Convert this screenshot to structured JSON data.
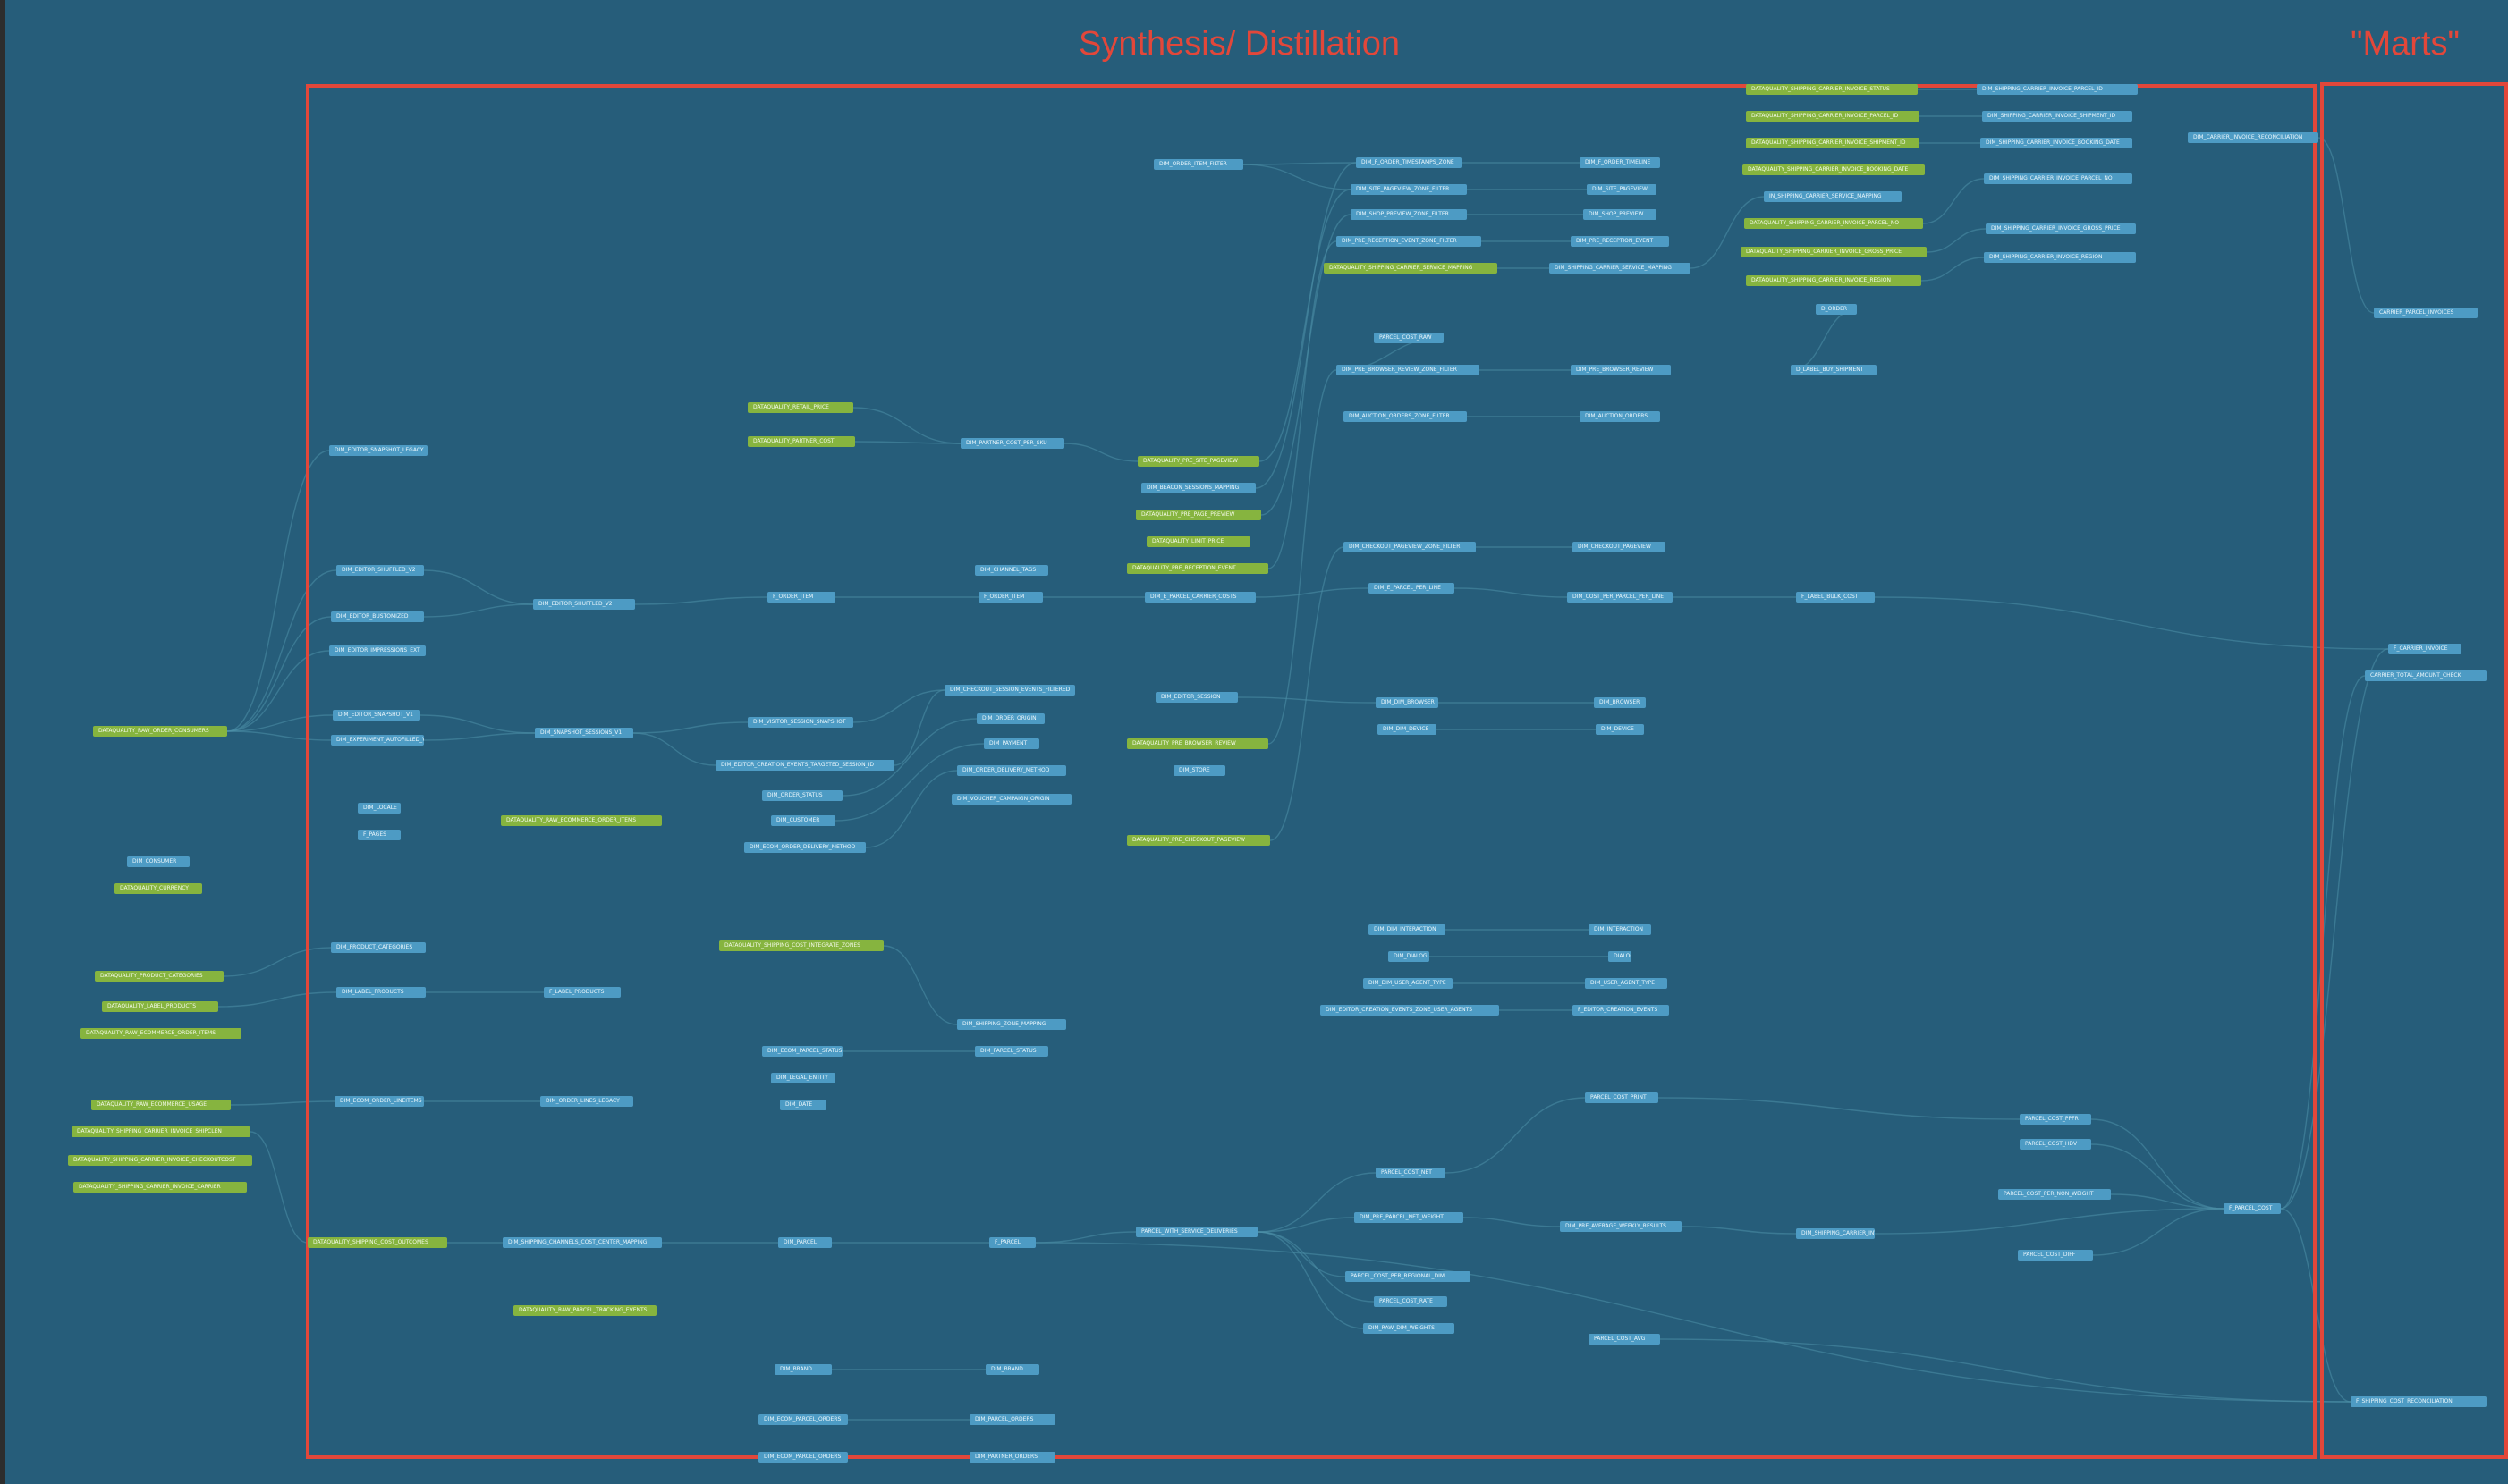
{
  "regions": [
    {
      "id": "synthesis",
      "title": "Synthesis/ Distillation"
    },
    {
      "id": "marts",
      "title": "\"Marts\""
    }
  ],
  "node_types": {
    "model_color": "#4d9bc4",
    "test_color": "#86b43f",
    "edge_color": "#4d8fa8",
    "region_border": "#e2473a",
    "background": "#265d7a"
  },
  "nodes": [
    {
      "id": "n1",
      "label": "DATAQUALITY_RAW_ORDER_CONSUMERS",
      "type": "test"
    },
    {
      "id": "n2",
      "label": "DIM_CONSUMER",
      "type": "model"
    },
    {
      "id": "n3",
      "label": "DATAQUALITY_CURRENCY",
      "type": "test"
    },
    {
      "id": "n4",
      "label": "DATAQUALITY_PRODUCT_CATEGORIES",
      "type": "test"
    },
    {
      "id": "n5",
      "label": "DATAQUALITY_LABEL_PRODUCTS",
      "type": "test"
    },
    {
      "id": "n6",
      "label": "DATAQUALITY_RAW_ECOMMERCE_ORDER_ITEMS",
      "type": "test"
    },
    {
      "id": "n7",
      "label": "DATAQUALITY_RAW_ECOMMERCE_USAGE",
      "type": "test"
    },
    {
      "id": "n8",
      "label": "DATAQUALITY_SHIPPING_CARRIER_INVOICE_SHIPCLEN",
      "type": "test"
    },
    {
      "id": "n9",
      "label": "DATAQUALITY_SHIPPING_CARRIER_INVOICE_CHECKOUTCOST",
      "type": "test"
    },
    {
      "id": "n10",
      "label": "DATAQUALITY_SHIPPING_CARRIER_INVOICE_CARRIER",
      "type": "test"
    },
    {
      "id": "n11",
      "label": "DIM_EDITOR_SNAPSHOT_LEGACY",
      "type": "model"
    },
    {
      "id": "n12",
      "label": "DIM_EDITOR_SHUFFLED_V2",
      "type": "model"
    },
    {
      "id": "n13",
      "label": "DIM_EDITOR_BUSTOMIZED",
      "type": "model"
    },
    {
      "id": "n14",
      "label": "DIM_EDITOR_IMPRESSIONS_EXT",
      "type": "model"
    },
    {
      "id": "n15",
      "label": "DIM_EDITOR_SNAPSHOT_V1",
      "type": "model"
    },
    {
      "id": "n16",
      "label": "DIM_EXPERIMENT_AUTOFILLED_V1",
      "type": "model"
    },
    {
      "id": "n17",
      "label": "DIM_LOCALE",
      "type": "model"
    },
    {
      "id": "n18",
      "label": "F_PAGES",
      "type": "model"
    },
    {
      "id": "n19",
      "label": "DIM_PRODUCT_CATEGORIES",
      "type": "model"
    },
    {
      "id": "n20",
      "label": "DIM_LABEL_PRODUCTS",
      "type": "model"
    },
    {
      "id": "n21",
      "label": "DIM_ECOM_ORDER_LINEITEMS",
      "type": "model"
    },
    {
      "id": "n22",
      "label": "DATAQUALITY_SHIPPING_COST_OUTCOMES",
      "type": "test"
    },
    {
      "id": "n23",
      "label": "DIM_EDITOR_SHUFFLED_V2",
      "type": "model"
    },
    {
      "id": "n24",
      "label": "DIM_SNAPSHOT_SESSIONS_V1",
      "type": "model"
    },
    {
      "id": "n25",
      "label": "DATAQUALITY_RAW_ECOMMERCE_ORDER_ITEMS",
      "type": "test"
    },
    {
      "id": "n26",
      "label": "F_LABEL_PRODUCTS",
      "type": "model"
    },
    {
      "id": "n27",
      "label": "DIM_ORDER_LINES_LEGACY",
      "type": "model"
    },
    {
      "id": "n28",
      "label": "DIM_SHIPPING_CHANNELS_COST_CENTER_MAPPING",
      "type": "model"
    },
    {
      "id": "n29",
      "label": "DATAQUALITY_RAW_PARCEL_TRACKING_EVENTS",
      "type": "test"
    },
    {
      "id": "n30",
      "label": "DATAQUALITY_RETAIL_PRICE",
      "type": "test"
    },
    {
      "id": "n31",
      "label": "DATAQUALITY_PARTNER_COST",
      "type": "test"
    },
    {
      "id": "n32",
      "label": "F_ORDER_ITEM",
      "type": "model"
    },
    {
      "id": "n33",
      "label": "DIM_VISITOR_SESSION_SNAPSHOT",
      "type": "model"
    },
    {
      "id": "n34",
      "label": "DIM_EDITOR_CREATION_EVENTS_TARGETED_SESSION_ID",
      "type": "model"
    },
    {
      "id": "n35",
      "label": "DIM_ORDER_STATUS",
      "type": "model"
    },
    {
      "id": "n36",
      "label": "DIM_CUSTOMER",
      "type": "model"
    },
    {
      "id": "n37",
      "label": "DIM_ECOM_ORDER_DELIVERY_METHOD",
      "type": "model"
    },
    {
      "id": "n38",
      "label": "DATAQUALITY_SHIPPING_COST_INTEGRATE_ZONES",
      "type": "test"
    },
    {
      "id": "n39",
      "label": "DIM_ECOM_PARCEL_STATUS",
      "type": "model"
    },
    {
      "id": "n40",
      "label": "DIM_LEGAL_ENTITY",
      "type": "model"
    },
    {
      "id": "n41",
      "label": "DIM_DATE",
      "type": "model"
    },
    {
      "id": "n42",
      "label": "DIM_PARCEL",
      "type": "model"
    },
    {
      "id": "n43",
      "label": "DIM_BRAND",
      "type": "model"
    },
    {
      "id": "n44",
      "label": "DIM_ECOM_PARCEL_ORDERS",
      "type": "model"
    },
    {
      "id": "n45",
      "label": "DIM_ECOM_PARCEL_ORDERS",
      "type": "model"
    },
    {
      "id": "n46",
      "label": "DIM_PARTNER_COST_PER_SKU",
      "type": "model"
    },
    {
      "id": "n47",
      "label": "DIM_CHANNEL_TAGS",
      "type": "model"
    },
    {
      "id": "n48",
      "label": "F_ORDER_ITEM",
      "type": "model"
    },
    {
      "id": "n49",
      "label": "DIM_CHECKOUT_SESSION_EVENTS_FILTERED",
      "type": "model"
    },
    {
      "id": "n50",
      "label": "DIM_ORDER_ORIGIN",
      "type": "model"
    },
    {
      "id": "n51",
      "label": "DIM_PAYMENT",
      "type": "model"
    },
    {
      "id": "n52",
      "label": "DIM_ORDER_DELIVERY_METHOD",
      "type": "model"
    },
    {
      "id": "n53",
      "label": "DIM_VOUCHER_CAMPAIGN_ORIGIN",
      "type": "model"
    },
    {
      "id": "n54",
      "label": "DIM_SHIPPING_ZONE_MAPPING",
      "type": "model"
    },
    {
      "id": "n55",
      "label": "DIM_PARCEL_STATUS",
      "type": "model"
    },
    {
      "id": "n56",
      "label": "F_PARCEL",
      "type": "model"
    },
    {
      "id": "n57",
      "label": "DIM_BRAND",
      "type": "model"
    },
    {
      "id": "n58",
      "label": "DIM_PARCEL_ORDERS",
      "type": "model"
    },
    {
      "id": "n59",
      "label": "DIM_PARTNER_ORDERS",
      "type": "model"
    },
    {
      "id": "n60",
      "label": "DIM_ORDER_ITEM_FILTER",
      "type": "model"
    },
    {
      "id": "n61",
      "label": "DATAQUALITY_PRE_SITE_PAGEVIEW",
      "type": "test"
    },
    {
      "id": "n62",
      "label": "DIM_BEACON_SESSIONS_MAPPING",
      "type": "model"
    },
    {
      "id": "n63",
      "label": "DATAQUALITY_PRE_PAGE_PREVIEW",
      "type": "test"
    },
    {
      "id": "n64",
      "label": "DATAQUALITY_LIMIT_PRICE",
      "type": "test"
    },
    {
      "id": "n65",
      "label": "DATAQUALITY_PRE_RECEPTION_EVENT",
      "type": "test"
    },
    {
      "id": "n66",
      "label": "DIM_E_PARCEL_CARRIER_COSTS",
      "type": "model"
    },
    {
      "id": "n67",
      "label": "DIM_EDITOR_SESSION",
      "type": "model"
    },
    {
      "id": "n68",
      "label": "DATAQUALITY_PRE_BROWSER_REVIEW",
      "type": "test"
    },
    {
      "id": "n69",
      "label": "DIM_STORE",
      "type": "model"
    },
    {
      "id": "n70",
      "label": "DATAQUALITY_PRE_CHECKOUT_PAGEVIEW",
      "type": "test"
    },
    {
      "id": "n71",
      "label": "PARCEL_WITH_SERVICE_DELIVERIES",
      "type": "model"
    },
    {
      "id": "n72",
      "label": "DIM_F_ORDER_TIMESTAMPS_ZONE",
      "type": "model"
    },
    {
      "id": "n73",
      "label": "DIM_SITE_PAGEVIEW_ZONE_FILTER",
      "type": "model"
    },
    {
      "id": "n74",
      "label": "DIM_SHOP_PREVIEW_ZONE_FILTER",
      "type": "model"
    },
    {
      "id": "n75",
      "label": "DIM_PRE_RECEPTION_EVENT_ZONE_FILTER",
      "type": "model"
    },
    {
      "id": "n76",
      "label": "DATAQUALITY_SHIPPING_CARRIER_SERVICE_MAPPING",
      "type": "test"
    },
    {
      "id": "n77",
      "label": "PARCEL_COST_RAW",
      "type": "model"
    },
    {
      "id": "n78",
      "label": "DIM_PRE_BROWSER_REVIEW_ZONE_FILTER",
      "type": "model"
    },
    {
      "id": "n79",
      "label": "DIM_AUCTION_ORDERS_ZONE_FILTER",
      "type": "model"
    },
    {
      "id": "n80",
      "label": "DIM_CHECKOUT_PAGEVIEW_ZONE_FILTER",
      "type": "model"
    },
    {
      "id": "n81",
      "label": "DIM_E_PARCEL_PER_LINE",
      "type": "model"
    },
    {
      "id": "n82",
      "label": "DIM_DIM_BROWSER",
      "type": "model"
    },
    {
      "id": "n83",
      "label": "DIM_DIM_DEVICE",
      "type": "model"
    },
    {
      "id": "n84",
      "label": "DIM_DIM_INTERACTION",
      "type": "model"
    },
    {
      "id": "n85",
      "label": "DIM_DIALOG",
      "type": "model"
    },
    {
      "id": "n86",
      "label": "DIM_DIM_USER_AGENT_TYPE",
      "type": "model"
    },
    {
      "id": "n87",
      "label": "DIM_EDITOR_CREATION_EVENTS_ZONE_USER_AGENTS",
      "type": "model"
    },
    {
      "id": "n88",
      "label": "PARCEL_COST_NET",
      "type": "model"
    },
    {
      "id": "n89",
      "label": "DIM_PRE_PARCEL_NET_WEIGHT",
      "type": "model"
    },
    {
      "id": "n90",
      "label": "PARCEL_COST_PER_REGIONAL_DIM",
      "type": "model"
    },
    {
      "id": "n91",
      "label": "PARCEL_COST_RATE",
      "type": "model"
    },
    {
      "id": "n92",
      "label": "DIM_RAW_DIM_WEIGHTS",
      "type": "model"
    },
    {
      "id": "n93",
      "label": "DIM_F_ORDER_TIMELINE",
      "type": "model"
    },
    {
      "id": "n94",
      "label": "DIM_SITE_PAGEVIEW",
      "type": "model"
    },
    {
      "id": "n95",
      "label": "DIM_SHOP_PREVIEW",
      "type": "model"
    },
    {
      "id": "n96",
      "label": "DIM_PRE_RECEPTION_EVENT",
      "type": "model"
    },
    {
      "id": "n97",
      "label": "DIM_SHIPPING_CARRIER_SERVICE_MAPPING",
      "type": "model"
    },
    {
      "id": "n98",
      "label": "DIM_PRE_BROWSER_REVIEW",
      "type": "model"
    },
    {
      "id": "n99",
      "label": "DIM_AUCTION_ORDERS",
      "type": "model"
    },
    {
      "id": "n100",
      "label": "DIM_CHECKOUT_PAGEVIEW",
      "type": "model"
    },
    {
      "id": "n101",
      "label": "DIM_COST_PER_PARCEL_PER_LINE",
      "type": "model"
    },
    {
      "id": "n102",
      "label": "DIM_BROWSER",
      "type": "model"
    },
    {
      "id": "n103",
      "label": "DIM_DEVICE",
      "type": "model"
    },
    {
      "id": "n104",
      "label": "DIM_INTERACTION",
      "type": "model"
    },
    {
      "id": "n105",
      "label": "DIALOG",
      "type": "model"
    },
    {
      "id": "n106",
      "label": "DIM_USER_AGENT_TYPE",
      "type": "model"
    },
    {
      "id": "n107",
      "label": "F_EDITOR_CREATION_EVENTS",
      "type": "model"
    },
    {
      "id": "n108",
      "label": "PARCEL_COST_PRINT",
      "type": "model"
    },
    {
      "id": "n109",
      "label": "DIM_PRE_AVERAGE_WEEKLY_RESULTS",
      "type": "model"
    },
    {
      "id": "n110",
      "label": "PARCEL_COST_AVG",
      "type": "model"
    },
    {
      "id": "n111",
      "label": "DATAQUALITY_SHIPPING_CARRIER_INVOICE_STATUS",
      "type": "test"
    },
    {
      "id": "n112",
      "label": "DATAQUALITY_SHIPPING_CARRIER_INVOICE_PARCEL_ID",
      "type": "test"
    },
    {
      "id": "n113",
      "label": "DATAQUALITY_SHIPPING_CARRIER_INVOICE_SHIPMENT_ID",
      "type": "test"
    },
    {
      "id": "n114",
      "label": "DATAQUALITY_SHIPPING_CARRIER_INVOICE_BOOKING_DATE",
      "type": "test"
    },
    {
      "id": "n115",
      "label": "IN_SHIPPING_CARRIER_SERVICE_MAPPING",
      "type": "model"
    },
    {
      "id": "n116",
      "label": "DATAQUALITY_SHIPPING_CARRIER_INVOICE_PARCEL_NO",
      "type": "test"
    },
    {
      "id": "n117",
      "label": "DATAQUALITY_SHIPPING_CARRIER_INVOICE_GROSS_PRICE",
      "type": "test"
    },
    {
      "id": "n118",
      "label": "DATAQUALITY_SHIPPING_CARRIER_INVOICE_REGION",
      "type": "test"
    },
    {
      "id": "n119",
      "label": "D_ORDER",
      "type": "model"
    },
    {
      "id": "n120",
      "label": "D_LABEL_BUY_SHIPMENT",
      "type": "model"
    },
    {
      "id": "n121",
      "label": "F_LABEL_BULK_COST",
      "type": "model"
    },
    {
      "id": "n122",
      "label": "DIM_SHIPPING_CARRIER_INVOICE_CONSOLIDATED",
      "type": "model"
    },
    {
      "id": "n123",
      "label": "DIM_SHIPPING_CARRIER_INVOICE_PARCEL_ID",
      "type": "model"
    },
    {
      "id": "n124",
      "label": "DIM_SHIPPING_CARRIER_INVOICE_SHIPMENT_ID",
      "type": "model"
    },
    {
      "id": "n125",
      "label": "DIM_SHIPPING_CARRIER_INVOICE_BOOKING_DATE",
      "type": "model"
    },
    {
      "id": "n126",
      "label": "DIM_SHIPPING_CARRIER_INVOICE_PARCEL_NO",
      "type": "model"
    },
    {
      "id": "n127",
      "label": "DIM_SHIPPING_CARRIER_INVOICE_GROSS_PRICE",
      "type": "model"
    },
    {
      "id": "n128",
      "label": "DIM_SHIPPING_CARRIER_INVOICE_REGION",
      "type": "model"
    },
    {
      "id": "n129",
      "label": "PARCEL_COST_PPFR",
      "type": "model"
    },
    {
      "id": "n130",
      "label": "PARCEL_COST_HDV",
      "type": "model"
    },
    {
      "id": "n131",
      "label": "PARCEL_COST_PER_NON_WEIGHT",
      "type": "model"
    },
    {
      "id": "n132",
      "label": "PARCEL_COST_DIFF",
      "type": "model"
    },
    {
      "id": "n133",
      "label": "DIM_CARRIER_INVOICE_RECONCILIATION",
      "type": "model"
    },
    {
      "id": "n134",
      "label": "F_PARCEL_COST",
      "type": "model"
    },
    {
      "id": "n135",
      "label": "CARRIER_PARCEL_INVOICES",
      "type": "model"
    },
    {
      "id": "n136",
      "label": "F_CARRIER_INVOICE",
      "type": "model"
    },
    {
      "id": "n137",
      "label": "CARRIER_TOTAL_AMOUNT_CHECK",
      "type": "model"
    },
    {
      "id": "n138",
      "label": "F_SHIPPING_COST_RECONCILIATION",
      "type": "model"
    }
  ]
}
